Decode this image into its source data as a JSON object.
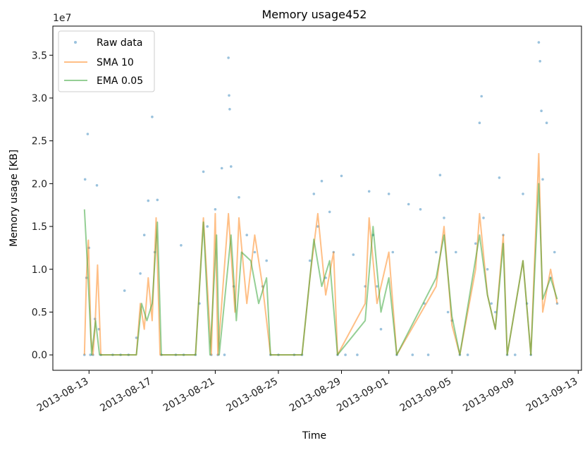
{
  "chart_data": {
    "type": "line",
    "title": "Memory usage452",
    "xlabel": "Time",
    "ylabel": "Memory usage [KB]",
    "y_offset_label": "1e7",
    "ylim": [
      -1800000,
      38400000
    ],
    "y_ticks": [
      0,
      5000000,
      10000000,
      15000000,
      20000000,
      25000000,
      30000000,
      35000000
    ],
    "y_tick_labels": [
      "0.0",
      "0.5",
      "1.0",
      "1.5",
      "2.0",
      "2.5",
      "3.0",
      "3.5"
    ],
    "xlim": [
      "2013-08-10T17:00",
      "2013-09-13T05:00"
    ],
    "x_ticks": [
      "2013-08-13",
      "2013-08-17",
      "2013-08-21",
      "2013-08-25",
      "2013-08-29",
      "2013-09-01",
      "2013-09-05",
      "2013-09-09",
      "2013-09-13"
    ],
    "x_tick_labels": [
      "2013-08-13",
      "2013-08-17",
      "2013-08-21",
      "2013-08-25",
      "2013-08-29",
      "2013-09-01",
      "2013-09-05",
      "2013-09-09",
      "2013-09-13"
    ],
    "legend": {
      "placement": "top-left",
      "entries": [
        "Raw data",
        "SMA 10",
        "EMA 0.05"
      ]
    },
    "grid": false,
    "series": [
      {
        "name": "Raw data",
        "style": "points",
        "color": "#1f77b4",
        "points": [
          [
            "2013-08-12T17:00",
            0
          ],
          [
            "2013-08-12T18:00",
            20500000
          ],
          [
            "2013-08-12T20:00",
            9000000
          ],
          [
            "2013-08-12T22:00",
            25800000
          ],
          [
            "2013-08-13T00:00",
            12500000
          ],
          [
            "2013-08-13T02:00",
            0
          ],
          [
            "2013-08-13T06:00",
            0
          ],
          [
            "2013-08-13T09:00",
            4200000
          ],
          [
            "2013-08-13T12:00",
            19800000
          ],
          [
            "2013-08-13T15:00",
            3000000
          ],
          [
            "2013-08-13T18:00",
            0
          ],
          [
            "2013-08-14T12:00",
            0
          ],
          [
            "2013-08-15T00:00",
            0
          ],
          [
            "2013-08-15T06:00",
            7500000
          ],
          [
            "2013-08-15T12:00",
            0
          ],
          [
            "2013-08-16T00:00",
            2000000
          ],
          [
            "2013-08-16T06:00",
            9500000
          ],
          [
            "2013-08-16T12:00",
            14000000
          ],
          [
            "2013-08-16T18:00",
            18000000
          ],
          [
            "2013-08-17T00:00",
            27800000
          ],
          [
            "2013-08-17T04:00",
            12000000
          ],
          [
            "2013-08-17T08:00",
            18100000
          ],
          [
            "2013-08-17T14:00",
            0
          ],
          [
            "2013-08-18T12:00",
            0
          ],
          [
            "2013-08-18T20:00",
            12800000
          ],
          [
            "2013-08-19T00:00",
            0
          ],
          [
            "2013-08-19T18:00",
            0
          ],
          [
            "2013-08-20T00:00",
            6000000
          ],
          [
            "2013-08-20T06:00",
            21400000
          ],
          [
            "2013-08-20T12:00",
            15000000
          ],
          [
            "2013-08-20T18:00",
            0
          ],
          [
            "2013-08-21T00:00",
            17000000
          ],
          [
            "2013-08-21T04:00",
            0
          ],
          [
            "2013-08-21T10:00",
            21800000
          ],
          [
            "2013-08-21T14:00",
            0
          ],
          [
            "2013-08-21T20:00",
            34700000
          ],
          [
            "2013-08-21T21:00",
            30300000
          ],
          [
            "2013-08-21T22:00",
            28700000
          ],
          [
            "2013-08-22T00:00",
            22000000
          ],
          [
            "2013-08-22T04:00",
            8000000
          ],
          [
            "2013-08-22T12:00",
            18400000
          ],
          [
            "2013-08-23T00:00",
            14000000
          ],
          [
            "2013-08-23T12:00",
            12000000
          ],
          [
            "2013-08-24T00:00",
            8000000
          ],
          [
            "2013-08-24T06:00",
            11000000
          ],
          [
            "2013-08-24T12:00",
            0
          ],
          [
            "2013-08-25T00:00",
            0
          ],
          [
            "2013-08-26T00:00",
            0
          ],
          [
            "2013-08-26T12:00",
            0
          ],
          [
            "2013-08-27T00:00",
            11000000
          ],
          [
            "2013-08-27T06:00",
            18800000
          ],
          [
            "2013-08-27T12:00",
            15000000
          ],
          [
            "2013-08-27T18:00",
            20300000
          ],
          [
            "2013-08-28T00:00",
            9000000
          ],
          [
            "2013-08-28T06:00",
            16700000
          ],
          [
            "2013-08-28T12:00",
            12000000
          ],
          [
            "2013-08-28T18:00",
            0
          ],
          [
            "2013-08-29T00:00",
            20900000
          ],
          [
            "2013-08-29T06:00",
            0
          ],
          [
            "2013-08-29T18:00",
            11700000
          ],
          [
            "2013-08-30T00:00",
            0
          ],
          [
            "2013-08-30T12:00",
            8000000
          ],
          [
            "2013-08-30T18:00",
            19100000
          ],
          [
            "2013-08-31T00:00",
            14000000
          ],
          [
            "2013-08-31T06:00",
            8000000
          ],
          [
            "2013-08-31T12:00",
            3000000
          ],
          [
            "2013-09-01T00:00",
            18800000
          ],
          [
            "2013-09-01T06:00",
            12000000
          ],
          [
            "2013-09-01T12:00",
            0
          ],
          [
            "2013-09-02T06:00",
            17600000
          ],
          [
            "2013-09-02T12:00",
            0
          ],
          [
            "2013-09-03T00:00",
            17000000
          ],
          [
            "2013-09-03T06:00",
            6000000
          ],
          [
            "2013-09-03T12:00",
            0
          ],
          [
            "2013-09-04T00:00",
            12000000
          ],
          [
            "2013-09-04T06:00",
            21000000
          ],
          [
            "2013-09-04T12:00",
            16000000
          ],
          [
            "2013-09-04T18:00",
            5000000
          ],
          [
            "2013-09-05T00:00",
            4000000
          ],
          [
            "2013-09-05T06:00",
            12000000
          ],
          [
            "2013-09-05T12:00",
            0
          ],
          [
            "2013-09-06T00:00",
            0
          ],
          [
            "2013-09-06T12:00",
            13000000
          ],
          [
            "2013-09-06T18:00",
            27100000
          ],
          [
            "2013-09-06T21:00",
            30200000
          ],
          [
            "2013-09-07T00:00",
            16000000
          ],
          [
            "2013-09-07T06:00",
            10000000
          ],
          [
            "2013-09-07T12:00",
            6000000
          ],
          [
            "2013-09-07T18:00",
            5000000
          ],
          [
            "2013-09-08T00:00",
            20700000
          ],
          [
            "2013-09-08T06:00",
            14000000
          ],
          [
            "2013-09-08T12:00",
            0
          ],
          [
            "2013-09-09T00:00",
            0
          ],
          [
            "2013-09-09T12:00",
            18800000
          ],
          [
            "2013-09-09T18:00",
            6000000
          ],
          [
            "2013-09-10T00:00",
            0
          ],
          [
            "2013-09-10T12:00",
            36500000
          ],
          [
            "2013-09-10T14:00",
            34300000
          ],
          [
            "2013-09-10T16:00",
            28500000
          ],
          [
            "2013-09-10T18:00",
            20500000
          ],
          [
            "2013-09-11T00:00",
            27100000
          ],
          [
            "2013-09-11T06:00",
            9000000
          ],
          [
            "2013-09-11T12:00",
            12000000
          ],
          [
            "2013-09-11T16:00",
            6000000
          ]
        ]
      },
      {
        "name": "SMA 10",
        "style": "line",
        "color": "#ff7f0e",
        "points": [
          [
            "2013-08-12T17:00",
            0
          ],
          [
            "2013-08-12T20:00",
            9000000
          ],
          [
            "2013-08-12T23:00",
            13400000
          ],
          [
            "2013-08-13T03:00",
            2000000
          ],
          [
            "2013-08-13T06:00",
            0
          ],
          [
            "2013-08-13T09:00",
            3000000
          ],
          [
            "2013-08-13T13:00",
            10500000
          ],
          [
            "2013-08-13T18:00",
            0
          ],
          [
            "2013-08-16T00:00",
            0
          ],
          [
            "2013-08-16T06:00",
            6000000
          ],
          [
            "2013-08-16T12:00",
            3000000
          ],
          [
            "2013-08-16T18:00",
            9000000
          ],
          [
            "2013-08-17T00:00",
            4000000
          ],
          [
            "2013-08-17T06:00",
            16000000
          ],
          [
            "2013-08-17T12:00",
            0
          ],
          [
            "2013-08-19T18:00",
            0
          ],
          [
            "2013-08-20T06:00",
            16000000
          ],
          [
            "2013-08-20T12:00",
            8000000
          ],
          [
            "2013-08-20T18:00",
            0
          ],
          [
            "2013-08-21T00:00",
            16500000
          ],
          [
            "2013-08-21T04:00",
            0
          ],
          [
            "2013-08-21T20:00",
            16500000
          ],
          [
            "2013-08-22T06:00",
            5000000
          ],
          [
            "2013-08-22T12:00",
            16000000
          ],
          [
            "2013-08-23T00:00",
            6000000
          ],
          [
            "2013-08-23T12:00",
            14000000
          ],
          [
            "2013-08-24T00:00",
            8000000
          ],
          [
            "2013-08-24T12:00",
            0
          ],
          [
            "2013-08-26T12:00",
            0
          ],
          [
            "2013-08-27T00:00",
            9000000
          ],
          [
            "2013-08-27T12:00",
            16500000
          ],
          [
            "2013-08-28T00:00",
            7000000
          ],
          [
            "2013-08-28T12:00",
            12000000
          ],
          [
            "2013-08-28T18:00",
            0
          ],
          [
            "2013-08-30T12:00",
            6000000
          ],
          [
            "2013-08-30T18:00",
            16000000
          ],
          [
            "2013-08-31T06:00",
            6000000
          ],
          [
            "2013-09-01T00:00",
            12000000
          ],
          [
            "2013-09-01T12:00",
            0
          ],
          [
            "2013-09-04T00:00",
            8000000
          ],
          [
            "2013-09-04T12:00",
            15000000
          ],
          [
            "2013-09-05T00:00",
            3500000
          ],
          [
            "2013-09-05T12:00",
            0
          ],
          [
            "2013-09-06T12:00",
            10000000
          ],
          [
            "2013-09-06T18:00",
            16500000
          ],
          [
            "2013-09-07T06:00",
            7000000
          ],
          [
            "2013-09-07T18:00",
            3000000
          ],
          [
            "2013-09-08T06:00",
            14000000
          ],
          [
            "2013-09-08T12:00",
            0
          ],
          [
            "2013-09-09T12:00",
            11000000
          ],
          [
            "2013-09-10T00:00",
            0
          ],
          [
            "2013-09-10T12:00",
            23500000
          ],
          [
            "2013-09-10T18:00",
            5000000
          ],
          [
            "2013-09-11T06:00",
            10000000
          ],
          [
            "2013-09-11T16:00",
            6000000
          ]
        ]
      },
      {
        "name": "EMA 0.05",
        "style": "line",
        "color": "#2ca02c",
        "points": [
          [
            "2013-08-12T17:00",
            17000000
          ],
          [
            "2013-08-12T22:00",
            10000000
          ],
          [
            "2013-08-13T04:00",
            0
          ],
          [
            "2013-08-13T10:00",
            4000000
          ],
          [
            "2013-08-13T16:00",
            0
          ],
          [
            "2013-08-16T00:00",
            0
          ],
          [
            "2013-08-16T08:00",
            6000000
          ],
          [
            "2013-08-16T16:00",
            4000000
          ],
          [
            "2013-08-17T00:00",
            6000000
          ],
          [
            "2013-08-17T08:00",
            15500000
          ],
          [
            "2013-08-17T14:00",
            0
          ],
          [
            "2013-08-19T18:00",
            0
          ],
          [
            "2013-08-20T06:00",
            15500000
          ],
          [
            "2013-08-20T16:00",
            0
          ],
          [
            "2013-08-21T02:00",
            14000000
          ],
          [
            "2013-08-21T06:00",
            0
          ],
          [
            "2013-08-22T00:00",
            14000000
          ],
          [
            "2013-08-22T08:00",
            4000000
          ],
          [
            "2013-08-22T16:00",
            12000000
          ],
          [
            "2013-08-23T06:00",
            11000000
          ],
          [
            "2013-08-23T18:00",
            6000000
          ],
          [
            "2013-08-24T06:00",
            9000000
          ],
          [
            "2013-08-24T12:00",
            0
          ],
          [
            "2013-08-26T12:00",
            0
          ],
          [
            "2013-08-27T06:00",
            13500000
          ],
          [
            "2013-08-27T18:00",
            8000000
          ],
          [
            "2013-08-28T06:00",
            11000000
          ],
          [
            "2013-08-28T18:00",
            0
          ],
          [
            "2013-08-30T12:00",
            4000000
          ],
          [
            "2013-08-31T00:00",
            15000000
          ],
          [
            "2013-08-31T12:00",
            5000000
          ],
          [
            "2013-09-01T00:00",
            9000000
          ],
          [
            "2013-09-01T12:00",
            0
          ],
          [
            "2013-09-04T00:00",
            9000000
          ],
          [
            "2013-09-04T12:00",
            14000000
          ],
          [
            "2013-09-05T00:00",
            4500000
          ],
          [
            "2013-09-05T12:00",
            0
          ],
          [
            "2013-09-06T18:00",
            14000000
          ],
          [
            "2013-09-07T06:00",
            7000000
          ],
          [
            "2013-09-07T18:00",
            3000000
          ],
          [
            "2013-09-08T06:00",
            13000000
          ],
          [
            "2013-09-08T12:00",
            0
          ],
          [
            "2013-09-09T12:00",
            11000000
          ],
          [
            "2013-09-10T00:00",
            0
          ],
          [
            "2013-09-10T12:00",
            20000000
          ],
          [
            "2013-09-10T18:00",
            6500000
          ],
          [
            "2013-09-11T06:00",
            9000000
          ],
          [
            "2013-09-11T16:00",
            6500000
          ]
        ]
      }
    ]
  }
}
